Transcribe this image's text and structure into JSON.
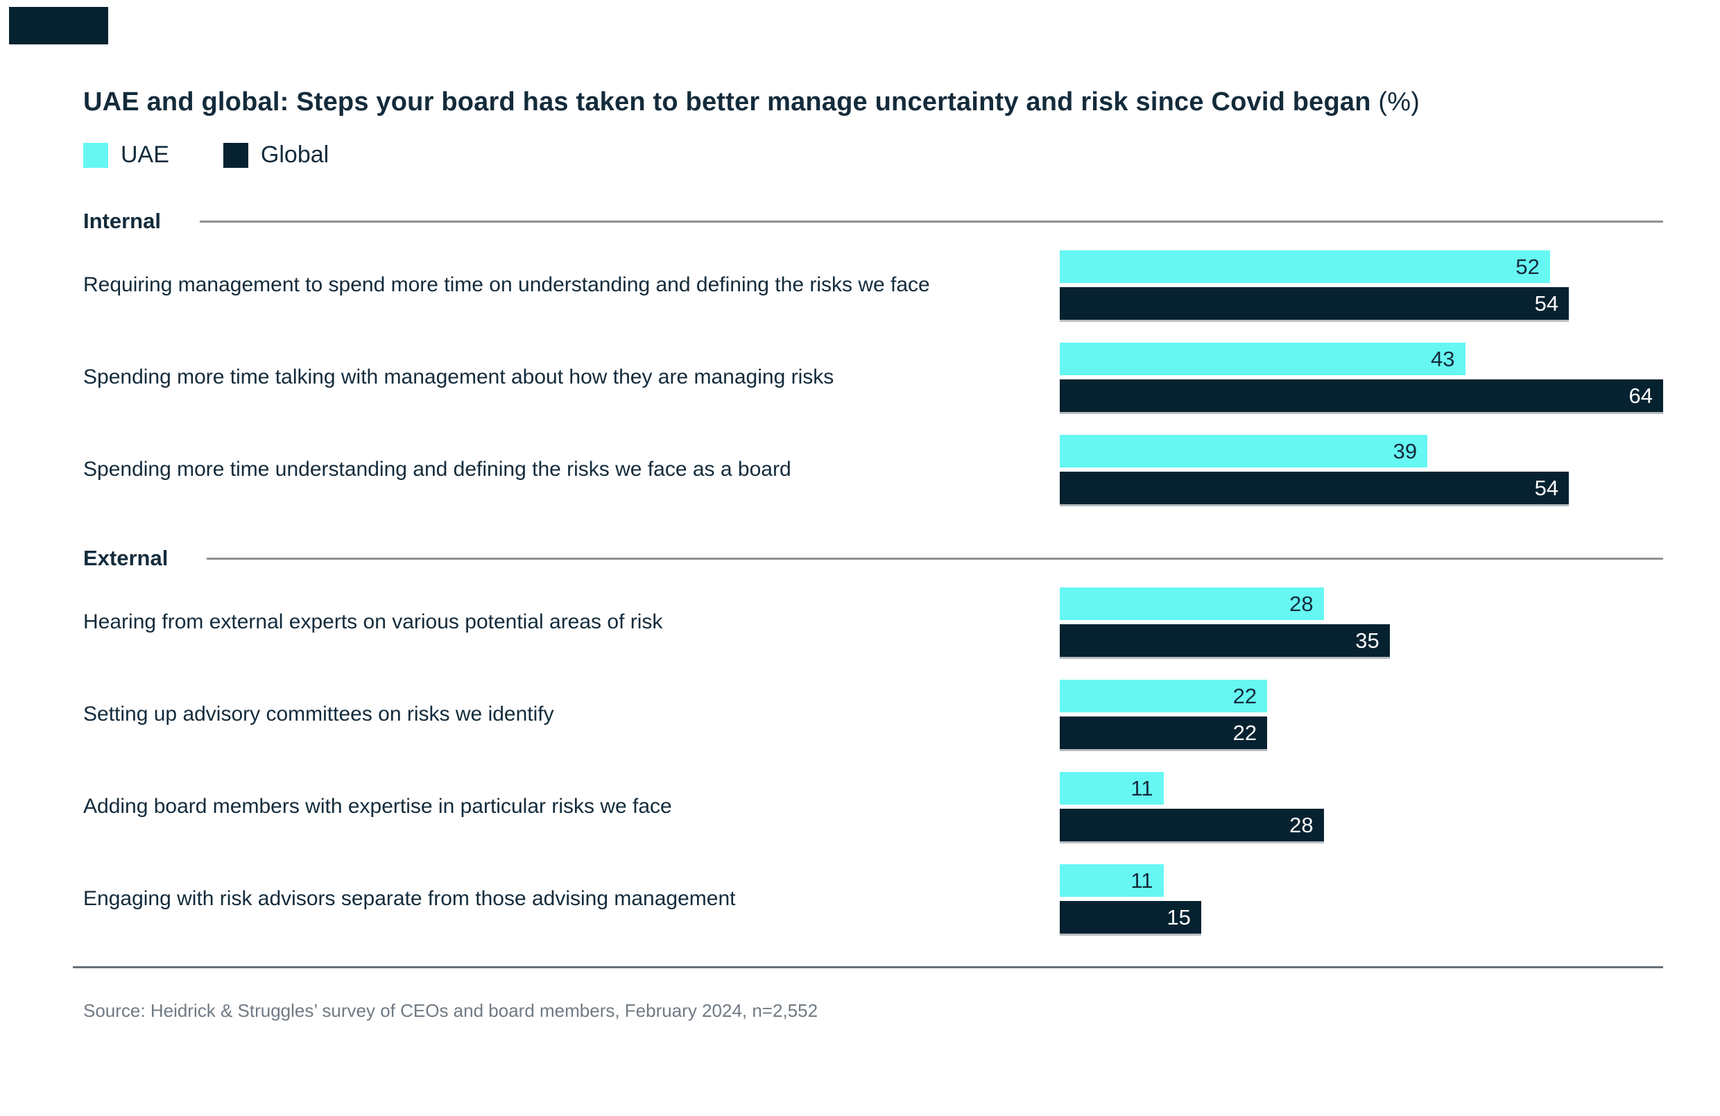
{
  "brand": {
    "corner_block_color": "#062231"
  },
  "header": {
    "title_bold": "UAE and global: Steps your board has taken to better manage uncertainty and risk since Covid began",
    "title_suffix": " (%)"
  },
  "legend": {
    "uae_label": "UAE",
    "global_label": "Global"
  },
  "chart_data": {
    "type": "bar",
    "orientation": "horizontal",
    "title": "UAE and global: Steps your board has taken to better manage uncertainty and risk since Covid began (%)",
    "unit": "%",
    "xlim": [
      0,
      64
    ],
    "grid": false,
    "legend_position": "top-left",
    "legend": [
      "UAE",
      "Global"
    ],
    "categories": [
      "Requiring management to spend more time on understanding and defining the risks we face",
      "Spending more time talking with management about how they are managing risks",
      "Spending more time understanding and defining the risks we face as a board",
      "Hearing from external experts on various potential areas of risk",
      "Setting up advisory committees on risks we identify",
      "Adding board members with expertise in particular risks we face",
      "Engaging with risk advisors separate from those advising management"
    ],
    "series": [
      {
        "name": "UAE",
        "color": "#66F7F3",
        "values": [
          52,
          43,
          39,
          28,
          22,
          11,
          11
        ]
      },
      {
        "name": "Global",
        "color": "#062231",
        "values": [
          54,
          64,
          54,
          35,
          22,
          28,
          15
        ]
      }
    ],
    "groups": [
      {
        "name": "Internal",
        "rows": [
          {
            "category": "Requiring management to spend more time on understanding and defining the risks we face",
            "UAE": 52,
            "Global": 54
          },
          {
            "category": "Spending more time talking with management about how they are managing risks",
            "UAE": 43,
            "Global": 64
          },
          {
            "category": "Spending more time understanding and defining the risks we face as a board",
            "UAE": 39,
            "Global": 54
          }
        ]
      },
      {
        "name": "External",
        "rows": [
          {
            "category": "Hearing from external experts on various potential areas of risk",
            "UAE": 28,
            "Global": 35
          },
          {
            "category": "Setting up advisory committees on risks we identify",
            "UAE": 22,
            "Global": 22
          },
          {
            "category": "Adding board members with expertise in particular risks we face",
            "UAE": 11,
            "Global": 28
          },
          {
            "category": "Engaging with risk advisors separate from those advising management",
            "UAE": 11,
            "Global": 15
          }
        ]
      }
    ]
  },
  "footer": {
    "source": "Source: Heidrick & Struggles’ survey of CEOs and board members, February 2024, n=2,552"
  },
  "colors": {
    "uae": "#66F7F3",
    "global": "#062231",
    "text": "#132B3B",
    "section_rule": "#8E9194",
    "bottom_rule": "#6A7076",
    "source_text": "#707A84"
  }
}
